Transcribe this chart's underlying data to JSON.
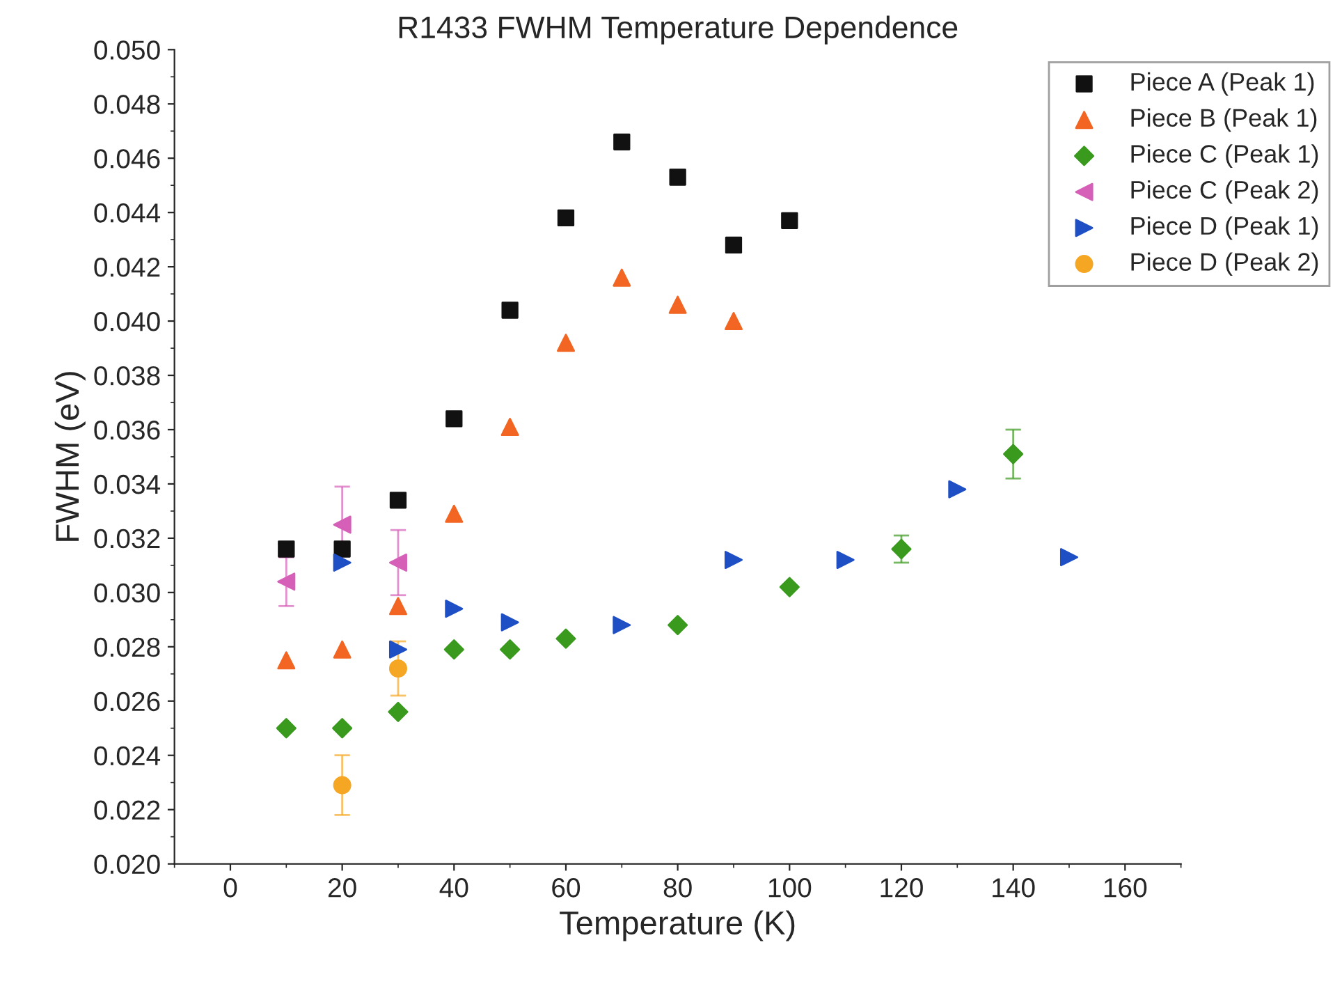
{
  "chart_data": {
    "type": "scatter",
    "title": "R1433 FWHM Temperature Dependence",
    "xlabel": "Temperature (K)",
    "ylabel": "FWHM (eV)",
    "xlim": [
      -10,
      170
    ],
    "xticks": [
      0,
      20,
      40,
      60,
      80,
      100,
      120,
      140,
      160
    ],
    "ylim": [
      0.02,
      0.05
    ],
    "yticks": [
      {
        "value": 0.02,
        "label": "0.020"
      },
      {
        "value": 0.022,
        "label": "0.022"
      },
      {
        "value": 0.024,
        "label": "0.024"
      },
      {
        "value": 0.026,
        "label": "0.026"
      },
      {
        "value": 0.028,
        "label": "0.028"
      },
      {
        "value": 0.03,
        "label": "0.030"
      },
      {
        "value": 0.032,
        "label": "0.032"
      },
      {
        "value": 0.034,
        "label": "0.034"
      },
      {
        "value": 0.036,
        "label": "0.036"
      },
      {
        "value": 0.038,
        "label": "0.038"
      },
      {
        "value": 0.04,
        "label": "0.040"
      },
      {
        "value": 0.042,
        "label": "0.042"
      },
      {
        "value": 0.044,
        "label": "0.044"
      },
      {
        "value": 0.046,
        "label": "0.046"
      },
      {
        "value": 0.048,
        "label": "0.048"
      },
      {
        "value": 0.05,
        "label": "0.050"
      }
    ],
    "grid": false,
    "legend": "top right",
    "series": [
      {
        "name": "Piece A (Peak 1)",
        "color": "#111111",
        "marker": "square",
        "x": [
          10,
          20,
          30,
          40,
          50,
          60,
          70,
          80,
          90,
          100
        ],
        "values": [
          0.0316,
          0.0316,
          0.0334,
          0.0364,
          0.0404,
          0.0438,
          0.0466,
          0.0453,
          0.0428,
          0.0437
        ]
      },
      {
        "name": "Piece B (Peak 1)",
        "color": "#f26522",
        "marker": "triangle",
        "x": [
          10,
          20,
          30,
          40,
          50,
          60,
          70,
          80,
          90
        ],
        "values": [
          0.0275,
          0.0279,
          0.0295,
          0.0329,
          0.0361,
          0.0392,
          0.0416,
          0.0406,
          0.04
        ]
      },
      {
        "name": "Piece C (Peak 1)",
        "color": "#3a9a1e",
        "marker": "diamond",
        "x": [
          10,
          20,
          30,
          40,
          50,
          60,
          80,
          100,
          120,
          140
        ],
        "values": [
          0.025,
          0.025,
          0.0256,
          0.0279,
          0.0279,
          0.0283,
          0.0288,
          0.0302,
          0.0316,
          0.0351
        ],
        "errors": [
          null,
          null,
          null,
          null,
          null,
          null,
          null,
          null,
          0.0005,
          0.0009
        ]
      },
      {
        "name": "Piece C (Peak 2)",
        "color": "#d65fb8",
        "marker": "triangle-left",
        "x": [
          10,
          20,
          30
        ],
        "values": [
          0.0304,
          0.0325,
          0.0311
        ],
        "errors": [
          0.0009,
          0.0014,
          0.0012
        ]
      },
      {
        "name": "Piece D (Peak 1)",
        "color": "#1f4fc4",
        "marker": "triangle-right",
        "x": [
          20,
          30,
          40,
          50,
          70,
          90,
          110,
          130,
          150
        ],
        "values": [
          0.0311,
          0.0279,
          0.0294,
          0.0289,
          0.0288,
          0.0312,
          0.0312,
          0.0338,
          0.0313
        ]
      },
      {
        "name": "Piece D (Peak 2)",
        "color": "#f5a623",
        "marker": "circle",
        "x": [
          20,
          30
        ],
        "values": [
          0.0229,
          0.0272
        ],
        "errors": [
          0.0011,
          0.001
        ]
      }
    ]
  }
}
